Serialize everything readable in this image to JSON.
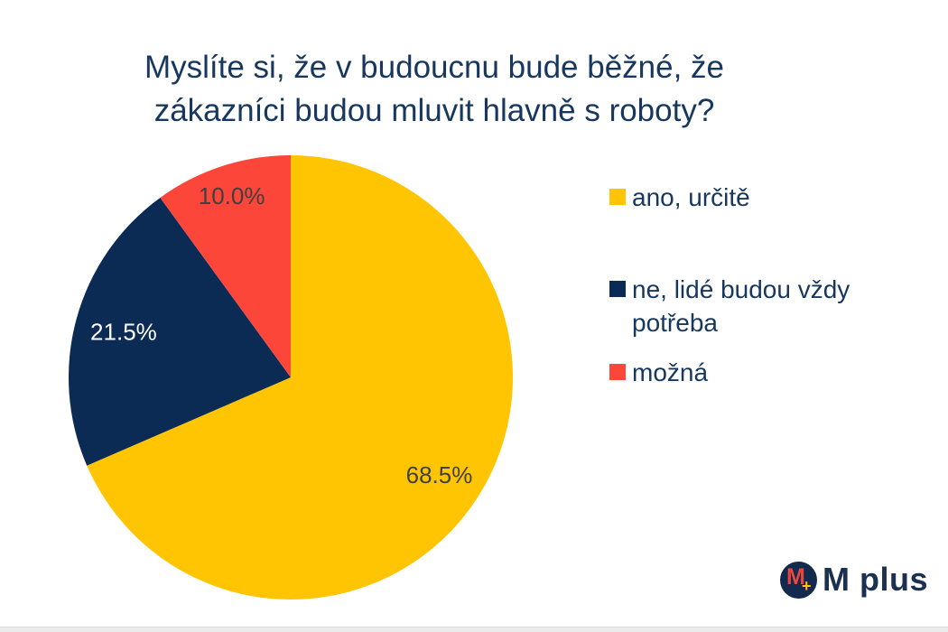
{
  "header": {
    "line1": "Myslíte si, že v budoucnu bude běžné, že",
    "line2": "zákazníci budou mluvit hlavně s roboty?"
  },
  "chart_data": {
    "type": "pie",
    "title": "Myslíte si, že v budoucnu bude běžné, že zákazníci budou mluvit hlavně s roboty?",
    "legend_position": "right",
    "units": "percent",
    "total": 100,
    "start_position": "top-clockwise",
    "slices": [
      {
        "id": "ano-urcite",
        "label": "ano, určitě",
        "value": 68.5,
        "display": "68.5%",
        "color": "#FFC402",
        "label_color": "#404040"
      },
      {
        "id": "ne-lide-budou-vzdy-potreba",
        "label": "ne, lidé budou vždy potřeba",
        "value": 21.5,
        "display": "21.5%",
        "color": "#0B2B55",
        "label_color": "#FFFFFF"
      },
      {
        "id": "mozna",
        "label": "možná",
        "value": 10.0,
        "display": "10.0%",
        "color": "#FC4639",
        "label_color": "#404040"
      }
    ]
  },
  "logo": {
    "brand": "M plus",
    "monogram": "M",
    "plus_sign": "+",
    "badge_color": "#14294E",
    "monogram_color": "#E8473C",
    "plus_color": "#FFC402",
    "wordmark_color": "#1C3050"
  },
  "colors": {
    "title_text": "#17375E",
    "legend_text": "#17375E",
    "background": "#FFFFFF",
    "bottom_bar": "#EBEBEB"
  }
}
